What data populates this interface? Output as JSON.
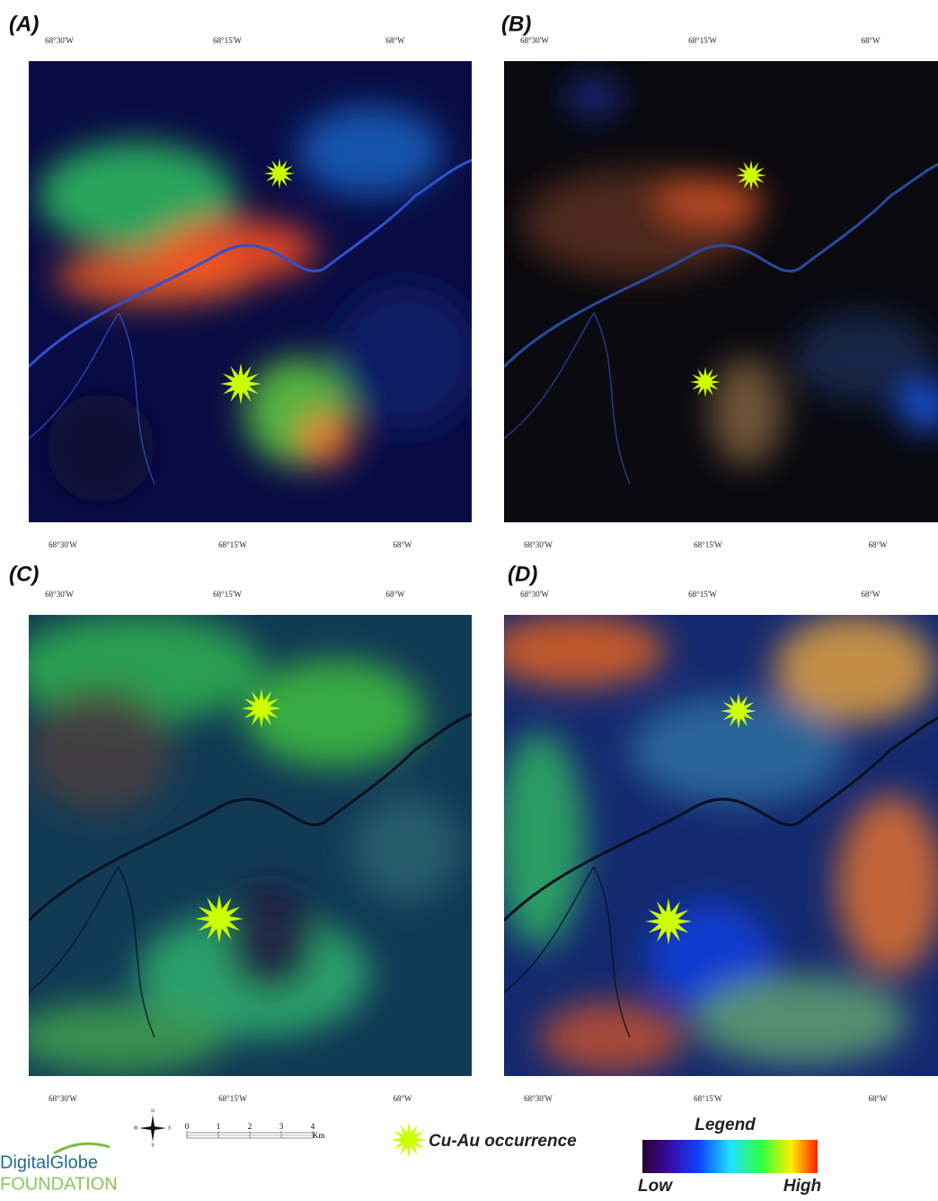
{
  "panels": [
    {
      "label": "(A)"
    },
    {
      "label": "(B)"
    },
    {
      "label": "(C)"
    },
    {
      "label": "(D)"
    }
  ],
  "longitudes": [
    "68°30'W",
    "68°15'W",
    "68°W"
  ],
  "scale_bar": {
    "ticks": [
      "0",
      "1",
      "2",
      "3",
      "4"
    ],
    "unit": "Km"
  },
  "compass": {
    "n": "N",
    "s": "S",
    "e": "E",
    "w": "W"
  },
  "marker_label": "Cu-Au occurrence",
  "legend": {
    "title": "Legend",
    "low": "Low",
    "high": "High"
  },
  "logo": {
    "line1": "DigitalGlobe",
    "line2": "FOUNDATION"
  }
}
